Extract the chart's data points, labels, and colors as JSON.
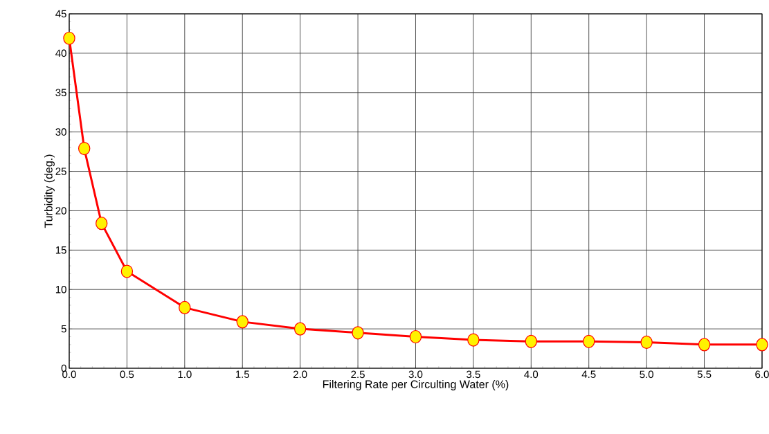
{
  "chart_data": {
    "type": "line",
    "xlabel": "Filtering Rate per Circulting Water (%)",
    "ylabel": "Turbidity (deg.)",
    "x": [
      0.0,
      0.13,
      0.28,
      0.5,
      1.0,
      1.5,
      2.0,
      2.5,
      3.0,
      3.5,
      4.0,
      4.5,
      5.0,
      5.5,
      6.0
    ],
    "series": [
      {
        "color": "#ff0000",
        "values": [
          41.9,
          27.9,
          18.4,
          12.3,
          7.7,
          5.9,
          5.0,
          4.5,
          4.0,
          3.6,
          3.4,
          3.4,
          3.3,
          3.0,
          3.0
        ]
      }
    ],
    "xlim": [
      0,
      6
    ],
    "ylim": [
      0,
      45
    ],
    "xticks": [
      {
        "value": 0,
        "label": "0.0"
      },
      {
        "value": 0.5,
        "label": "0.5"
      },
      {
        "value": 1,
        "label": "1.0"
      },
      {
        "value": 1.5,
        "label": "1.5"
      },
      {
        "value": 2,
        "label": "2.0"
      },
      {
        "value": 2.5,
        "label": "2.5"
      },
      {
        "value": 3,
        "label": "3.0"
      },
      {
        "value": 3.5,
        "label": "3.5"
      },
      {
        "value": 4,
        "label": "4.0"
      },
      {
        "value": 4.5,
        "label": "4.5"
      },
      {
        "value": 5,
        "label": "5.0"
      },
      {
        "value": 5.5,
        "label": "5.5"
      },
      {
        "value": 6,
        "label": "6.0"
      }
    ],
    "yticks": [
      0,
      5,
      10,
      15,
      20,
      25,
      30,
      35,
      40,
      45
    ],
    "grid": true,
    "marker": "circle",
    "line_style": "solid"
  }
}
